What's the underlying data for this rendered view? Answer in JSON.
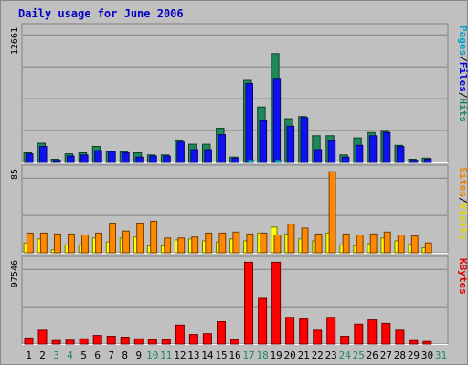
{
  "chart_data": [
    {
      "type": "bar",
      "title": "Daily usage for June 2006",
      "categories": [
        "1",
        "2",
        "3",
        "4",
        "5",
        "6",
        "7",
        "8",
        "9",
        "10",
        "11",
        "12",
        "13",
        "14",
        "15",
        "16",
        "17",
        "18",
        "19",
        "20",
        "21",
        "22",
        "23",
        "24",
        "25",
        "26",
        "27",
        "28",
        "29",
        "30",
        "31"
      ],
      "weekend_days": [
        "3",
        "4",
        "10",
        "11",
        "17",
        "18",
        "24",
        "25",
        "31"
      ],
      "ymax_label": "12661",
      "ylim": [
        0,
        12661
      ],
      "grid": true,
      "legend": [
        {
          "name": "Pages",
          "color": "#00a0c8"
        },
        {
          "name": "/",
          "color": "#000000"
        },
        {
          "name": "Files",
          "color": "#0000e0"
        },
        {
          "name": "/",
          "color": "#000000"
        },
        {
          "name": "Hits",
          "color": "#1e8a5a"
        }
      ],
      "series": [
        {
          "name": "Hits",
          "color": "#1e8a5a",
          "values": [
            900,
            1800,
            300,
            800,
            900,
            1500,
            1000,
            1000,
            900,
            700,
            700,
            2100,
            1700,
            1700,
            3200,
            500,
            7700,
            5200,
            10200,
            4100,
            4300,
            2500,
            2500,
            700,
            2300,
            2800,
            2900,
            1600,
            300,
            400,
            0
          ]
        },
        {
          "name": "Files",
          "color": "#1010f0",
          "values": [
            800,
            1500,
            200,
            600,
            700,
            1100,
            1000,
            900,
            500,
            600,
            600,
            1900,
            1200,
            1200,
            2600,
            400,
            7400,
            3900,
            7800,
            3400,
            4200,
            1200,
            2100,
            500,
            1600,
            2500,
            2800,
            1500,
            200,
            300,
            0
          ]
        },
        {
          "name": "Pages",
          "color": "#00b8e8",
          "values": [
            0,
            0,
            0,
            0,
            0,
            0,
            0,
            0,
            0,
            0,
            0,
            0,
            0,
            0,
            0,
            0,
            250,
            0,
            250,
            0,
            0,
            0,
            0,
            0,
            0,
            0,
            0,
            0,
            0,
            0,
            0
          ]
        }
      ]
    },
    {
      "type": "bar",
      "ymax_label": "85",
      "ylim": [
        0,
        85
      ],
      "grid": true,
      "legend": [
        {
          "name": "Sites",
          "color": "#f08000"
        },
        {
          "name": "/",
          "color": "#000000"
        },
        {
          "name": "Visits",
          "color": "#e8d800"
        }
      ],
      "series": [
        {
          "name": "Visits",
          "color": "#ffff00",
          "values": [
            10,
            14,
            3,
            8,
            8,
            15,
            11,
            15,
            16,
            7,
            7,
            13,
            14,
            12,
            11,
            14,
            12,
            20,
            26,
            19,
            14,
            12,
            20,
            8,
            7,
            9,
            15,
            12,
            9,
            5,
            0
          ]
        },
        {
          "name": "Sites",
          "color": "#ff8800",
          "values": [
            20,
            20,
            19,
            19,
            18,
            20,
            30,
            22,
            30,
            32,
            15,
            15,
            16,
            20,
            20,
            21,
            19,
            20,
            18,
            29,
            25,
            19,
            82,
            19,
            18,
            19,
            21,
            18,
            17,
            10,
            0
          ]
        }
      ]
    },
    {
      "type": "bar",
      "ymax_label": "97546",
      "ylim": [
        0,
        97546
      ],
      "grid": true,
      "legend": [
        {
          "name": "KBytes",
          "color": "#e00000"
        }
      ],
      "series": [
        {
          "name": "KBytes",
          "color": "#ff0000",
          "values": [
            7000,
            16000,
            4000,
            4500,
            6000,
            10000,
            9000,
            8000,
            6000,
            5000,
            5000,
            22000,
            11000,
            12000,
            26000,
            5000,
            95000,
            53000,
            95000,
            31000,
            29000,
            16000,
            31000,
            9000,
            23000,
            28000,
            24000,
            16000,
            4000,
            3000,
            0
          ]
        }
      ]
    }
  ]
}
